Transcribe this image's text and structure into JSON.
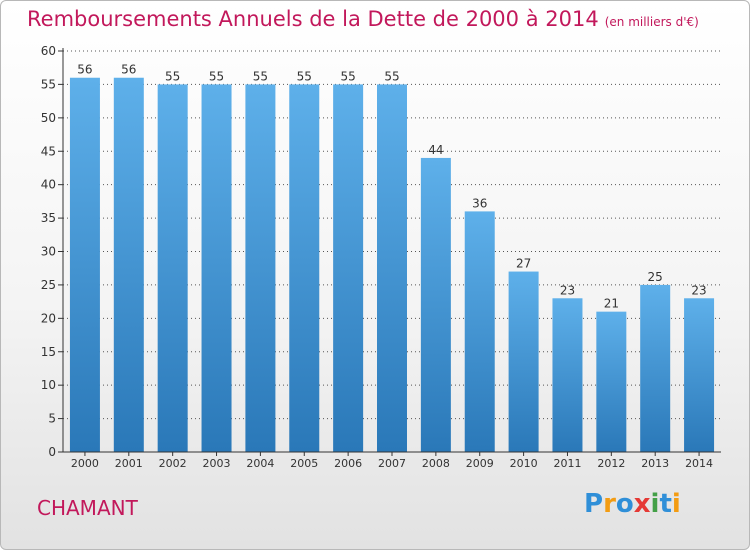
{
  "title": "Remboursements Annuels de la Dette de 2000 à 2014",
  "subtitle": "(en milliers d'€)",
  "city": "CHAMANT",
  "brand": {
    "letters": [
      {
        "char": "P",
        "color": "#2f8fd8"
      },
      {
        "char": "r",
        "color": "#f39c12"
      },
      {
        "char": "o",
        "color": "#2f8fd8"
      },
      {
        "char": "x",
        "color": "#e53935"
      },
      {
        "char": "i",
        "color": "#43a047"
      },
      {
        "char": "t",
        "color": "#2f8fd8"
      },
      {
        "char": "i",
        "color": "#f39c12"
      }
    ]
  },
  "colors": {
    "title": "#c2185b",
    "bar_top": "#5eb0ea",
    "bar_bottom": "#2a78b8",
    "grid": "#555555"
  },
  "chart_data": {
    "type": "bar",
    "categories": [
      "2000",
      "2001",
      "2002",
      "2003",
      "2004",
      "2005",
      "2006",
      "2007",
      "2008",
      "2009",
      "2010",
      "2011",
      "2012",
      "2013",
      "2014"
    ],
    "values": [
      56,
      56,
      55,
      55,
      55,
      55,
      55,
      55,
      44,
      36,
      27,
      23,
      21,
      25,
      23
    ],
    "ylim": [
      0,
      60
    ],
    "yticks": [
      0,
      5,
      10,
      15,
      20,
      25,
      30,
      35,
      40,
      45,
      50,
      55,
      60
    ],
    "title": "Remboursements Annuels de la Dette de 2000 à 2014",
    "subtitle": "(en milliers d'€)",
    "xlabel": "",
    "ylabel": "",
    "grid": true,
    "legend": "none"
  }
}
